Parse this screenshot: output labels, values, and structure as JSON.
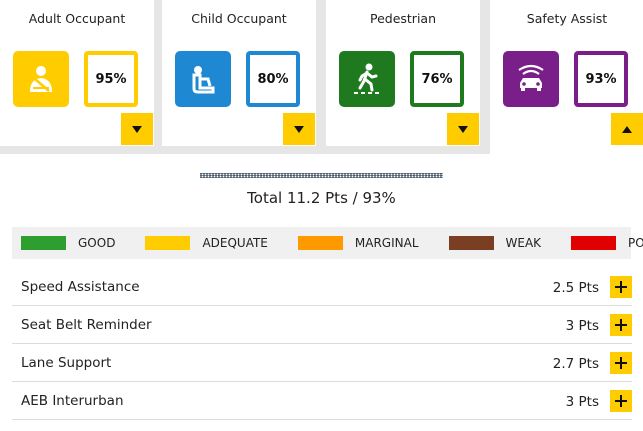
{
  "categories": [
    {
      "title": "Adult Occupant",
      "score": "95%",
      "icon": "seatbelt-adult-icon",
      "icon_color": "#ffcc00",
      "border_color": "#ffcc00",
      "toggle": "expand"
    },
    {
      "title": "Child Occupant",
      "score": "80%",
      "icon": "child-seat-icon",
      "icon_color": "#1e88d2",
      "border_color": "#1e88d2",
      "toggle": "expand"
    },
    {
      "title": "Pedestrian",
      "score": "76%",
      "icon": "pedestrian-icon",
      "icon_color": "#1f7a1f",
      "border_color": "#1f7a1f",
      "toggle": "expand"
    },
    {
      "title": "Safety Assist",
      "score": "93%",
      "icon": "car-sensor-icon",
      "icon_color": "#7a1f8a",
      "border_color": "#7a1f8a",
      "toggle": "collapse"
    }
  ],
  "total": "Total 11.2 Pts / 93%",
  "legend": [
    {
      "label": "GOOD",
      "color": "#2e9e2e"
    },
    {
      "label": "ADEQUATE",
      "color": "#ffcc00"
    },
    {
      "label": "MARGINAL",
      "color": "#ff9900"
    },
    {
      "label": "WEAK",
      "color": "#7a3f22"
    },
    {
      "label": "POOR",
      "color": "#e00000"
    }
  ],
  "items": [
    {
      "label": "Speed Assistance",
      "points": "2.5 Pts"
    },
    {
      "label": "Seat Belt Reminder",
      "points": "3 Pts"
    },
    {
      "label": "Lane Support",
      "points": "2.7 Pts"
    },
    {
      "label": "AEB Interurban",
      "points": "3 Pts"
    }
  ]
}
